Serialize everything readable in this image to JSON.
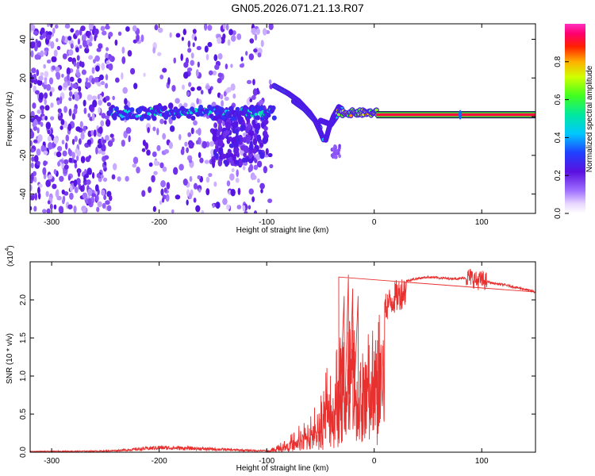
{
  "figure": {
    "title": "GN05.2026.071.21.13.R07"
  },
  "colorbar": {
    "label": "Normalized spectral amplitude",
    "ticks": [
      "0.0",
      "0.2",
      "0.4",
      "0.6",
      "0.8"
    ],
    "range": [
      0,
      1
    ]
  },
  "chart_data": [
    {
      "type": "heatmap",
      "xlabel": "Height of straight line (km)",
      "ylabel": "Frequency (Hz)",
      "xlim": [
        -320,
        150
      ],
      "ylim": [
        -50,
        48
      ],
      "xticks": [
        -300,
        -200,
        -100,
        0,
        100
      ],
      "yticks": [
        -40,
        -20,
        0,
        20,
        40
      ],
      "colormap": "rainbow (white-violet-blue-cyan-green-yellow-red-magenta)",
      "features": [
        {
          "region": "noise",
          "x_range": [
            -320,
            -100
          ],
          "y_range": [
            -50,
            48
          ],
          "amplitude": 0.1
        },
        {
          "region": "central band",
          "x_range": [
            -245,
            -95
          ],
          "y": 2,
          "amplitude": 0.3
        },
        {
          "region": "curved branch upper",
          "x": [
            -93,
            -80,
            -70,
            -60,
            -50
          ],
          "y": [
            16,
            12,
            8,
            2,
            -6
          ],
          "amplitude": 0.45
        },
        {
          "region": "curved branch lower",
          "x": [
            -75,
            -65,
            -55,
            -50,
            -47
          ],
          "y": [
            8,
            4,
            -2,
            -8,
            -12
          ],
          "amplitude": 0.35
        },
        {
          "region": "merging",
          "x_range": [
            -40,
            0
          ],
          "y": 2,
          "amplitude": 0.6
        },
        {
          "region": "saturated line",
          "x_range": [
            0,
            150
          ],
          "y": 1,
          "amplitude": 1.0
        }
      ]
    },
    {
      "type": "line",
      "xlabel": "Height of straight line (km)",
      "ylabel": "SNR (10 * v/v)",
      "multiplier": "(x10",
      "multiplier_exp": "4",
      "xlim": [
        -320,
        150
      ],
      "ylim": [
        0,
        2.5
      ],
      "xticks": [
        -300,
        -200,
        -100,
        0,
        100
      ],
      "yticks": [
        "0.0",
        "0.5",
        "1.0",
        "1.5",
        "2.0"
      ],
      "color": "#e8302f",
      "envelope": {
        "x": [
          -320,
          -250,
          -230,
          -200,
          -170,
          -130,
          -110,
          -100,
          -95,
          -90,
          -80,
          -70,
          -60,
          -50,
          -45,
          -40,
          -35,
          -30,
          -25,
          -20,
          -15,
          -10,
          -5,
          0,
          5,
          10,
          20,
          30,
          40,
          50,
          60,
          70,
          80,
          90,
          95,
          100,
          110,
          120,
          130,
          140,
          150
        ],
        "y": [
          0.01,
          0.015,
          0.03,
          0.06,
          0.05,
          0.03,
          0.02,
          0.02,
          0.05,
          0.1,
          0.2,
          0.35,
          0.5,
          0.8,
          1.2,
          1.3,
          1.5,
          1.6,
          1.8,
          1.9,
          1.4,
          1.5,
          1.6,
          1.7,
          1.85,
          2.0,
          2.15,
          2.25,
          2.28,
          2.3,
          2.29,
          2.28,
          2.28,
          2.3,
          2.25,
          2.26,
          2.22,
          2.2,
          2.17,
          2.14,
          2.1
        ]
      },
      "spikes": {
        "x": [
          -33,
          -28,
          -24,
          -20,
          -15
        ],
        "y": [
          2.3,
          2.05,
          2.33,
          2.15,
          2.05
        ]
      }
    }
  ]
}
